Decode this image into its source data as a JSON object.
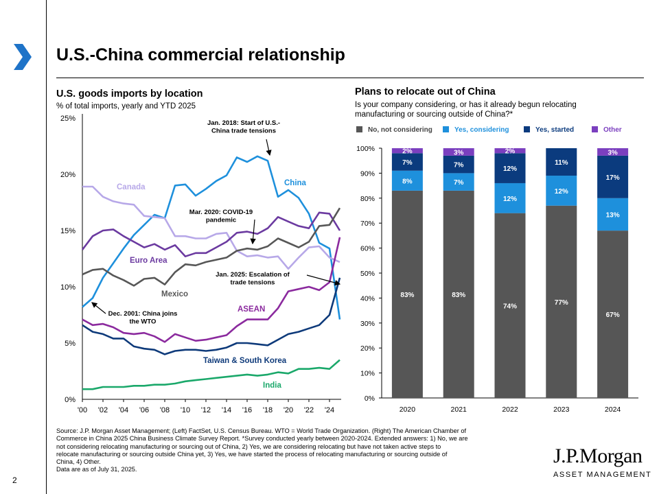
{
  "page": {
    "title": "U.S.-China commercial relationship",
    "page_number": "2",
    "footnote_lines": [
      "Source: J.P. Morgan Asset Management; (Left) FactSet, U.S. Census Bureau. WTO = World Trade Organization. (Right) The American Chamber of",
      "Commerce in China 2025 China Business Climate Survey Report. *Survey conducted yearly between 2020-2024. Extended answers: 1) No, we are",
      "not considering relocating manufacturing or sourcing out of China, 2) Yes, we are considering relocating but have not taken active steps to",
      "relocate manufacturing or sourcing outside China yet, 3) Yes, we have started the process of relocating manufacturing or sourcing outside of",
      "China, 4) Other.",
      "Data are as of July 31, 2025."
    ],
    "brand": {
      "name": "J.P.Morgan",
      "sub": "ASSET MANAGEMENT",
      "accent": "#1e73c8"
    }
  },
  "chart_data": [
    {
      "type": "line",
      "title": "U.S. goods imports by location",
      "subtitle": "% of total imports, yearly and YTD 2025",
      "ylim": [
        0,
        25
      ],
      "y_ticks": [
        0,
        5,
        10,
        15,
        20,
        25
      ],
      "y_tick_labels": [
        "0%",
        "5%",
        "10%",
        "15%",
        "20%",
        "25%"
      ],
      "xlim": [
        2000,
        2025
      ],
      "x_ticks": [
        2000,
        2002,
        2004,
        2006,
        2008,
        2010,
        2012,
        2014,
        2016,
        2018,
        2020,
        2022,
        2024
      ],
      "x_tick_labels": [
        "'00",
        "'02",
        "'04",
        "'06",
        "'08",
        "'10",
        "'12",
        "'14",
        "'16",
        "'18",
        "'20",
        "'22",
        "'24"
      ],
      "x": [
        2000,
        2001,
        2002,
        2003,
        2004,
        2005,
        2006,
        2007,
        2008,
        2009,
        2010,
        2011,
        2012,
        2013,
        2014,
        2015,
        2016,
        2017,
        2018,
        2019,
        2020,
        2021,
        2022,
        2023,
        2024,
        2025
      ],
      "series": [
        {
          "name": "China",
          "color": "#1e90dc",
          "values": [
            8.2,
            9.0,
            10.8,
            12.1,
            13.4,
            14.6,
            15.5,
            16.4,
            16.1,
            19.0,
            19.1,
            18.1,
            18.7,
            19.4,
            19.9,
            21.5,
            21.1,
            21.6,
            21.2,
            18.0,
            18.6,
            17.9,
            16.5,
            13.9,
            13.4,
            7.1
          ]
        },
        {
          "name": "Canada",
          "color": "#b7a8e8",
          "values": [
            18.9,
            18.9,
            18.0,
            17.6,
            17.4,
            17.3,
            16.3,
            16.2,
            16.1,
            14.5,
            14.5,
            14.3,
            14.3,
            14.7,
            14.8,
            13.2,
            12.7,
            12.8,
            12.6,
            12.7,
            11.6,
            12.6,
            13.5,
            13.6,
            12.6,
            12.2
          ]
        },
        {
          "name": "Euro Area",
          "color": "#6b3aa0",
          "values": [
            13.3,
            14.5,
            15.0,
            15.1,
            14.5,
            14.0,
            13.5,
            13.8,
            13.3,
            13.7,
            12.7,
            13.0,
            13.0,
            13.5,
            14.0,
            14.8,
            14.9,
            14.7,
            15.2,
            16.2,
            15.8,
            15.4,
            15.2,
            16.6,
            16.5,
            15.0
          ]
        },
        {
          "name": "Mexico",
          "color": "#575757",
          "values": [
            11.1,
            11.5,
            11.6,
            11.0,
            10.6,
            10.1,
            10.7,
            10.8,
            10.2,
            11.3,
            12.0,
            11.9,
            12.2,
            12.4,
            12.6,
            13.2,
            13.4,
            13.3,
            13.6,
            14.3,
            13.9,
            13.5,
            14.0,
            15.4,
            15.5,
            17.0
          ]
        },
        {
          "name": "ASEAN",
          "color": "#8b2a9e",
          "values": [
            7.1,
            6.6,
            6.7,
            6.4,
            5.9,
            5.8,
            5.9,
            5.6,
            5.1,
            5.8,
            5.5,
            5.2,
            5.3,
            5.5,
            5.7,
            6.5,
            7.1,
            7.1,
            7.1,
            8.1,
            9.6,
            9.8,
            10.0,
            9.7,
            10.4,
            14.4
          ]
        },
        {
          "name": "Taiwan & South Korea",
          "color": "#0e3a7a",
          "values": [
            6.6,
            6.0,
            5.8,
            5.4,
            5.4,
            4.7,
            4.5,
            4.4,
            4.0,
            4.3,
            4.4,
            4.4,
            4.3,
            4.4,
            4.6,
            5.0,
            5.0,
            4.9,
            4.8,
            5.3,
            5.8,
            6.0,
            6.3,
            6.6,
            7.5,
            10.8
          ]
        },
        {
          "name": "India",
          "color": "#1aa86a",
          "values": [
            0.9,
            0.9,
            1.1,
            1.1,
            1.1,
            1.2,
            1.2,
            1.3,
            1.3,
            1.4,
            1.6,
            1.7,
            1.8,
            1.9,
            2.0,
            2.1,
            2.2,
            2.1,
            2.2,
            2.4,
            2.3,
            2.7,
            2.7,
            2.8,
            2.7,
            3.5
          ]
        }
      ],
      "series_labels": [
        {
          "text": "China",
          "color": "#1e90dc"
        },
        {
          "text": "Canada",
          "color": "#b7a8e8"
        },
        {
          "text": "Euro Area",
          "color": "#6b3aa0"
        },
        {
          "text": "Mexico",
          "color": "#575757"
        },
        {
          "text": "ASEAN",
          "color": "#8b2a9e"
        },
        {
          "text": "Taiwan & South Korea",
          "color": "#0e3a7a"
        },
        {
          "text": "India",
          "color": "#1aa86a"
        }
      ],
      "annotations": [
        {
          "lines": [
            "Jan. 2018: Start of U.S.-",
            "China trade tensions"
          ]
        },
        {
          "lines": [
            "Mar. 2020: COVID-19",
            "pandemic"
          ]
        },
        {
          "lines": [
            "Jan. 2025: Escalation of",
            "trade tensions"
          ]
        },
        {
          "lines": [
            "Dec. 2001: China joins",
            "the WTO"
          ]
        }
      ]
    },
    {
      "type": "stacked-bar",
      "title": "Plans to relocate out of China",
      "subtitle_lines": [
        "Is your company considering, or has it already begun relocating",
        "manufacturing or sourcing outside of China?*"
      ],
      "categories": [
        "2020",
        "2021",
        "2022",
        "2023",
        "2024"
      ],
      "ylim": [
        0,
        100
      ],
      "y_ticks": [
        0,
        10,
        20,
        30,
        40,
        50,
        60,
        70,
        80,
        90,
        100
      ],
      "y_tick_labels": [
        "0%",
        "10%",
        "20%",
        "30%",
        "40%",
        "50%",
        "60%",
        "70%",
        "80%",
        "90%",
        "100%"
      ],
      "series": [
        {
          "name": "No, not considering",
          "color": "#565656",
          "values": [
            83,
            83,
            74,
            77,
            67
          ],
          "labels": [
            "83%",
            "83%",
            "74%",
            "77%",
            "67%"
          ]
        },
        {
          "name": "Yes, considering",
          "color": "#1e90dc",
          "values": [
            8,
            7,
            12,
            12,
            13
          ],
          "labels": [
            "8%",
            "7%",
            "12%",
            "12%",
            "13%"
          ]
        },
        {
          "name": "Yes, started",
          "color": "#0b3b7e",
          "values": [
            7,
            7,
            12,
            11,
            17
          ],
          "labels": [
            "7%",
            "7%",
            "12%",
            "11%",
            "17%"
          ]
        },
        {
          "name": "Other",
          "color": "#7b3fbf",
          "values": [
            2,
            3,
            2,
            0,
            3
          ],
          "labels": [
            "2%",
            "3%",
            "2%",
            "",
            "3%"
          ]
        }
      ]
    }
  ]
}
